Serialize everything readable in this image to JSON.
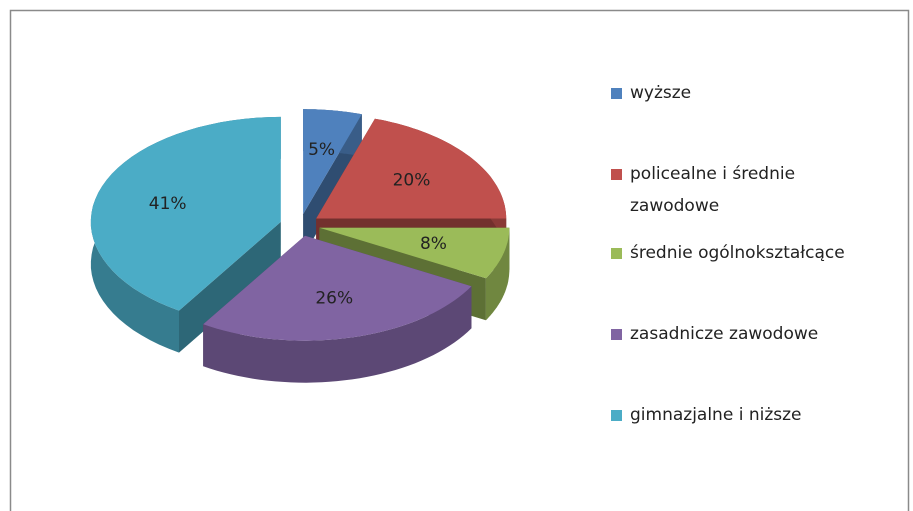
{
  "chart_data": {
    "type": "pie",
    "categories": [
      "wyższe",
      "policealne i średnie zawodowe",
      "średnie ogólnokształcące",
      "zasadnicze zawodowe",
      "gimnazjalne i niższe"
    ],
    "values": [
      5,
      20,
      8,
      26,
      41
    ],
    "value_labels": [
      "5%",
      "20%",
      "8%",
      "26%",
      "41%"
    ],
    "colors": [
      "#4f81bd",
      "#c0504d",
      "#9bbb59",
      "#8064a2",
      "#4bacc6"
    ],
    "legend": "right"
  }
}
